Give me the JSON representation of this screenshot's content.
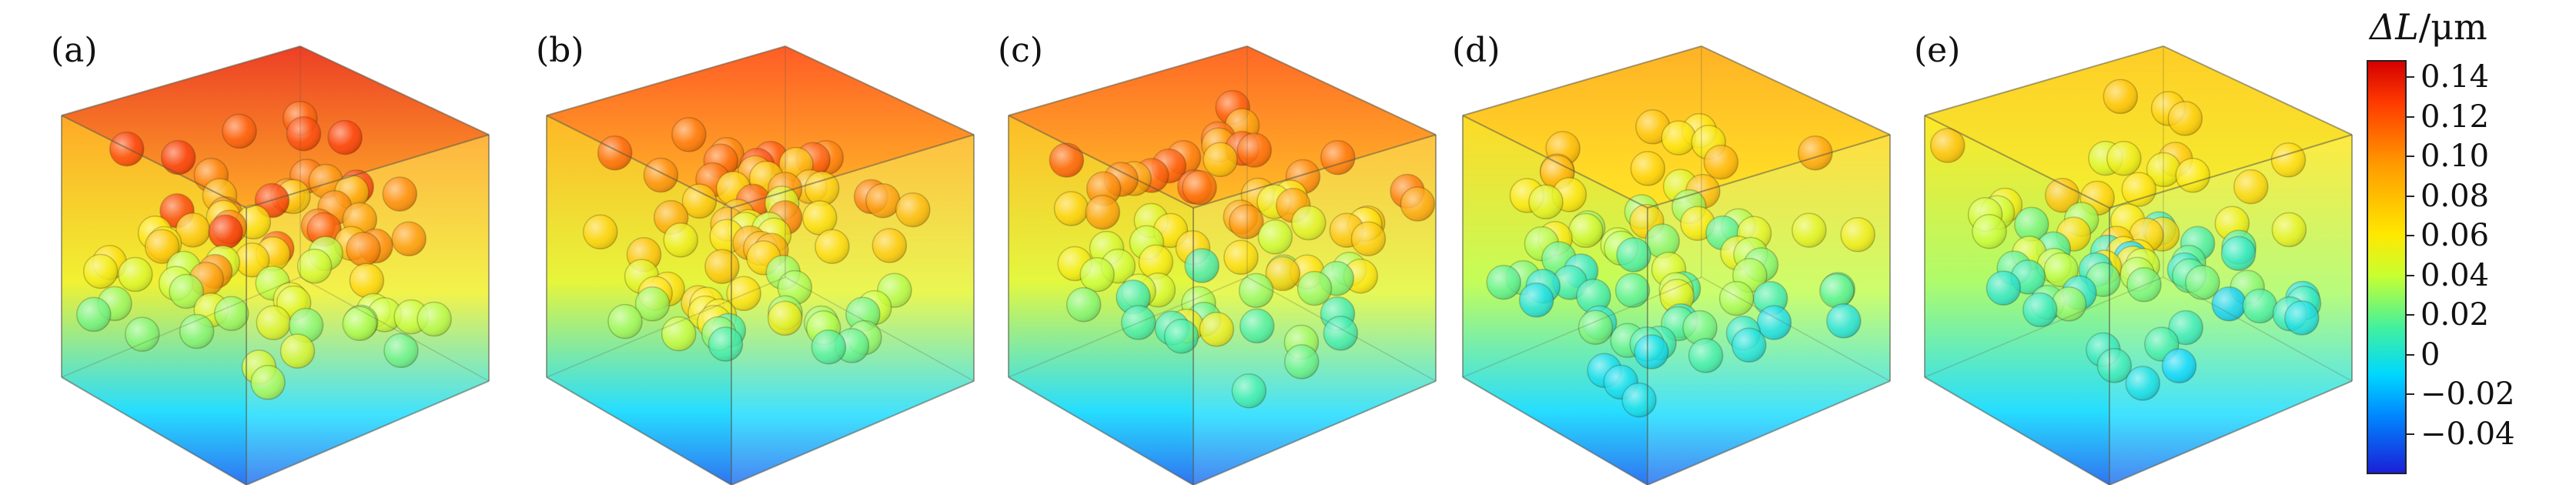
{
  "panels": [
    {
      "label": "(a)",
      "warmth": 1.0
    },
    {
      "label": "(b)",
      "warmth": 0.85
    },
    {
      "label": "(c)",
      "warmth": 0.8
    },
    {
      "label": "(d)",
      "warmth": 0.45
    },
    {
      "label": "(e)",
      "warmth": 0.3
    }
  ],
  "colorbar": {
    "title_symbol": "ΔL",
    "title_unit": "/μm",
    "ticks": [
      "0.14",
      "0.12",
      "0.10",
      "0.08",
      "0.06",
      "0.04",
      "0.02",
      "0",
      "−0.02",
      "−0.04"
    ],
    "colors": [
      "#d40000",
      "#ff9a00",
      "#ffe800",
      "#40f0a0",
      "#00d8ff",
      "#1a20d8"
    ]
  }
}
